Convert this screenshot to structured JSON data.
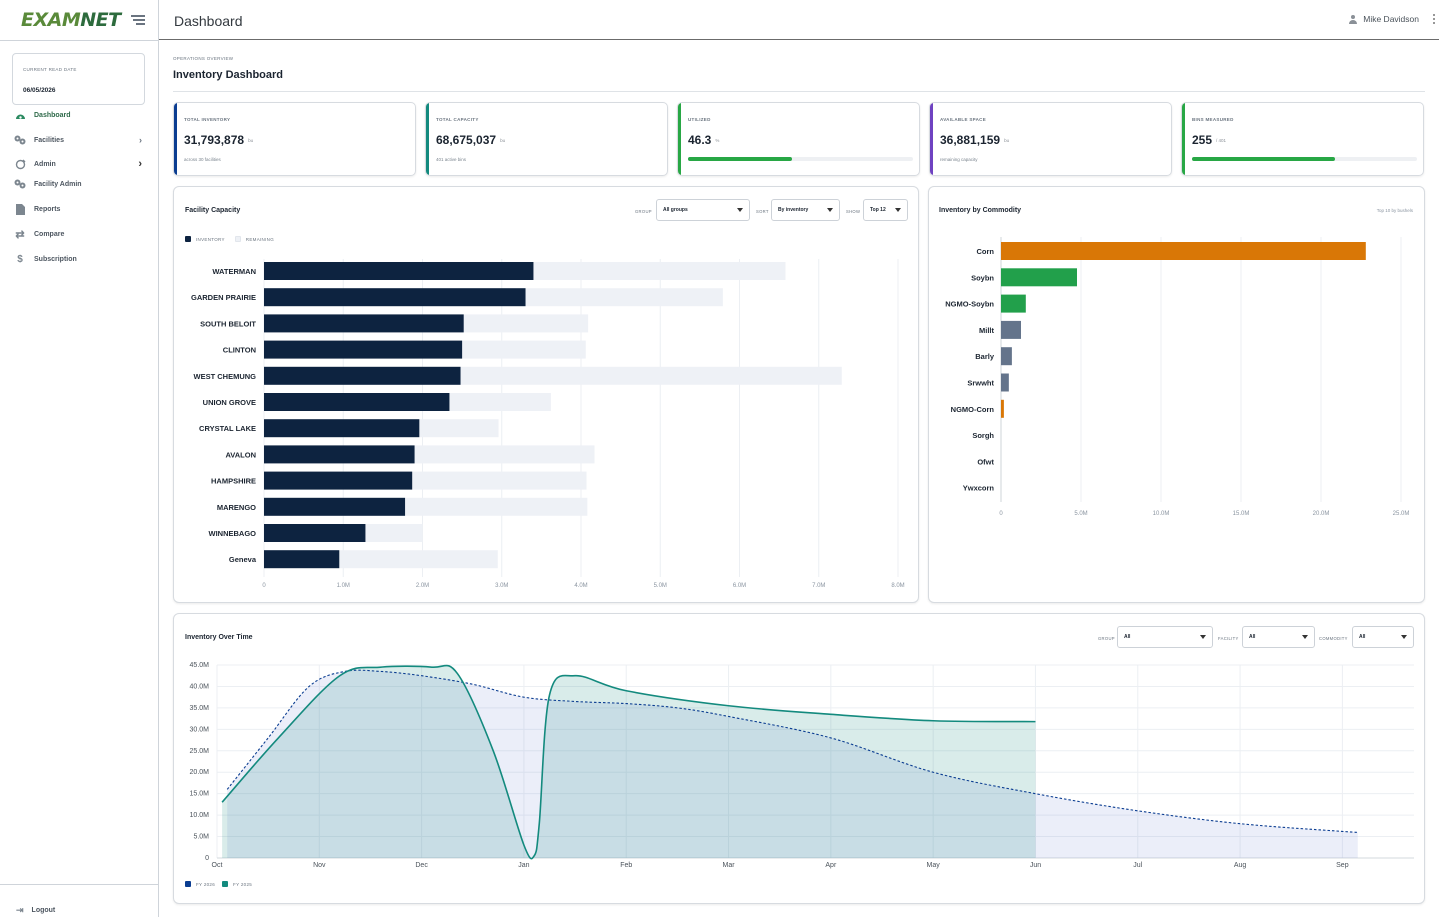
{
  "app": {
    "logo_a": "EXAM",
    "logo_b": "NET",
    "page_title": "Dashboard",
    "user_name": "Mike Davidson"
  },
  "sidebar": {
    "date_label": "CURRENT READ DATE",
    "date_value": "06/05/2026",
    "items": [
      {
        "label": "Dashboard",
        "icon": "dashboard-gauge-icon",
        "active": true
      },
      {
        "label": "Facilities",
        "icon": "facilities-icon",
        "chevron": true
      },
      {
        "label": "Admin",
        "icon": "admin-icon",
        "chevron": true
      },
      {
        "label": "Facility Admin",
        "icon": "facility-admin-icon"
      },
      {
        "label": "Reports",
        "icon": "reports-icon"
      },
      {
        "label": "Compare",
        "icon": "compare-arrows-icon"
      },
      {
        "label": "Subscription",
        "icon": "dollar-icon"
      }
    ],
    "logout": "Logout"
  },
  "header": {
    "eyebrow": "OPERATIONS OVERVIEW",
    "title": "Inventory Dashboard"
  },
  "kpis": [
    {
      "label": "TOTAL INVENTORY",
      "value": "31,793,878",
      "unit": "bu",
      "sub": "across 30 facilities",
      "color": "#0b3d91"
    },
    {
      "label": "TOTAL CAPACITY",
      "value": "68,675,037",
      "unit": "bu",
      "sub": "401 active bins",
      "color": "#138a7e"
    },
    {
      "label": "UTILIZED",
      "value": "46.3",
      "unit": "%",
      "progress": 0.463,
      "color": "#28a745"
    },
    {
      "label": "AVAILABLE SPACE",
      "value": "36,881,159",
      "unit": "bu",
      "sub": "remaining capacity",
      "color": "#6f42c1"
    },
    {
      "label": "BINS MEASURED",
      "value": "255",
      "unit": "/ 401",
      "progress": 0.636,
      "color": "#28a745"
    }
  ],
  "facility_capacity": {
    "title": "Facility Capacity",
    "group_label": "GROUP",
    "group_value": "All groups",
    "sort_label": "SORT",
    "sort_value": "By inventory",
    "show_label": "SHOW",
    "show_value": "Top 12",
    "legend_inventory": "INVENTORY",
    "legend_remaining": "REMAINING",
    "colors": {
      "inventory": "#0d2340",
      "remaining": "#eef1f6"
    }
  },
  "commodity": {
    "title": "Inventory by Commodity",
    "note": "Top 10 by bushels"
  },
  "over_time": {
    "title": "Inventory Over Time",
    "group_label": "GROUP",
    "group_value": "All",
    "facility_label": "FACILITY",
    "facility_value": "All",
    "commodity_label": "COMMODITY",
    "commodity_value": "All",
    "legend_fy2026": "FY 2026",
    "legend_fy2025": "FY 2025"
  },
  "chart_data": [
    {
      "type": "bar",
      "orientation": "horizontal",
      "stacked": true,
      "categories": [
        "WATERMAN",
        "GARDEN PRAIRIE",
        "SOUTH BELOIT",
        "CLINTON",
        "WEST CHEMUNG",
        "UNION GROVE",
        "CRYSTAL LAKE",
        "AVALON",
        "HAMPSHIRE",
        "MARENGO",
        "WINNEBAGO",
        "Geneva"
      ],
      "series": [
        {
          "name": "INVENTORY",
          "values": [
            3400000,
            3300000,
            2520000,
            2500000,
            2480000,
            2340000,
            1960000,
            1900000,
            1870000,
            1780000,
            1280000,
            950000
          ]
        },
        {
          "name": "REMAINING",
          "values": [
            3180000,
            2490000,
            1570000,
            1560000,
            4810000,
            1280000,
            1000000,
            2270000,
            2200000,
            2300000,
            720000,
            2000000
          ]
        }
      ],
      "xlim": [
        0,
        8000000
      ],
      "xticks": [
        "0",
        "1.0M",
        "2.0M",
        "3.0M",
        "4.0M",
        "5.0M",
        "6.0M",
        "7.0M",
        "8.0M"
      ],
      "grid": true,
      "legend": "top-left"
    },
    {
      "type": "bar",
      "orientation": "horizontal",
      "categories": [
        "Corn",
        "Soybn",
        "NGMO-Soybn",
        "Millt",
        "Barly",
        "Srwwht",
        "NGMO-Corn",
        "Sorgh",
        "Ofwt",
        "Ywxcorn"
      ],
      "values": [
        22800000,
        4750000,
        1550000,
        1250000,
        680000,
        490000,
        180000,
        0,
        0,
        0
      ],
      "colors": [
        "#d97706",
        "#22a04b",
        "#22a04b",
        "#64748b",
        "#64748b",
        "#64748b",
        "#d97706",
        "#64748b",
        "#64748b",
        "#64748b"
      ],
      "xlim": [
        0,
        25000000
      ],
      "xticks": [
        "0",
        "5.0M",
        "10.0M",
        "15.0M",
        "20.0M",
        "25.0M"
      ],
      "grid": true
    },
    {
      "type": "area",
      "x": [
        "Oct",
        "Nov",
        "Dec",
        "Jan",
        "Feb",
        "Mar",
        "Apr",
        "May",
        "Jun",
        "Jul",
        "Aug",
        "Sep"
      ],
      "series": [
        {
          "name": "FY 2026",
          "color": "#0b3d91",
          "style": "dashed",
          "points": [
            [
              0.1,
              16000000
            ],
            [
              0.5,
              28000000
            ],
            [
              0.9,
              40000000
            ],
            [
              1.25,
              43500000
            ],
            [
              1.6,
              43500000
            ],
            [
              2.0,
              42500000
            ],
            [
              2.5,
              40500000
            ],
            [
              3.0,
              37500000
            ],
            [
              3.5,
              36500000
            ],
            [
              4.0,
              36000000
            ],
            [
              4.5,
              35000000
            ],
            [
              5.0,
              33000000
            ],
            [
              6.0,
              28000000
            ],
            [
              7.0,
              20000000
            ],
            [
              8.0,
              15000000
            ],
            [
              9.0,
              11000000
            ],
            [
              10.0,
              8000000
            ],
            [
              11.0,
              6200000
            ],
            [
              11.15,
              6000000
            ]
          ]
        },
        {
          "name": "FY 2025",
          "color": "#138a7e",
          "style": "solid",
          "points": [
            [
              0.05,
              13000000
            ],
            [
              0.6,
              28000000
            ],
            [
              1.2,
              42500000
            ],
            [
              1.6,
              44500000
            ],
            [
              2.1,
              44500000
            ],
            [
              2.35,
              43000000
            ],
            [
              2.7,
              25000000
            ],
            [
              3.0,
              3000000
            ],
            [
              3.1,
              500000
            ],
            [
              3.15,
              8000000
            ],
            [
              3.25,
              38000000
            ],
            [
              3.5,
              42500000
            ],
            [
              4.0,
              39000000
            ],
            [
              5.0,
              35500000
            ],
            [
              6.0,
              33500000
            ],
            [
              7.0,
              32000000
            ],
            [
              8.0,
              31800000
            ]
          ]
        }
      ],
      "ylim": [
        0,
        45000000
      ],
      "yticks": [
        "0",
        "5.0M",
        "10.0M",
        "15.0M",
        "20.0M",
        "25.0M",
        "30.0M",
        "35.0M",
        "40.0M",
        "45.0M"
      ],
      "grid": true,
      "legend": "bottom-left"
    }
  ]
}
